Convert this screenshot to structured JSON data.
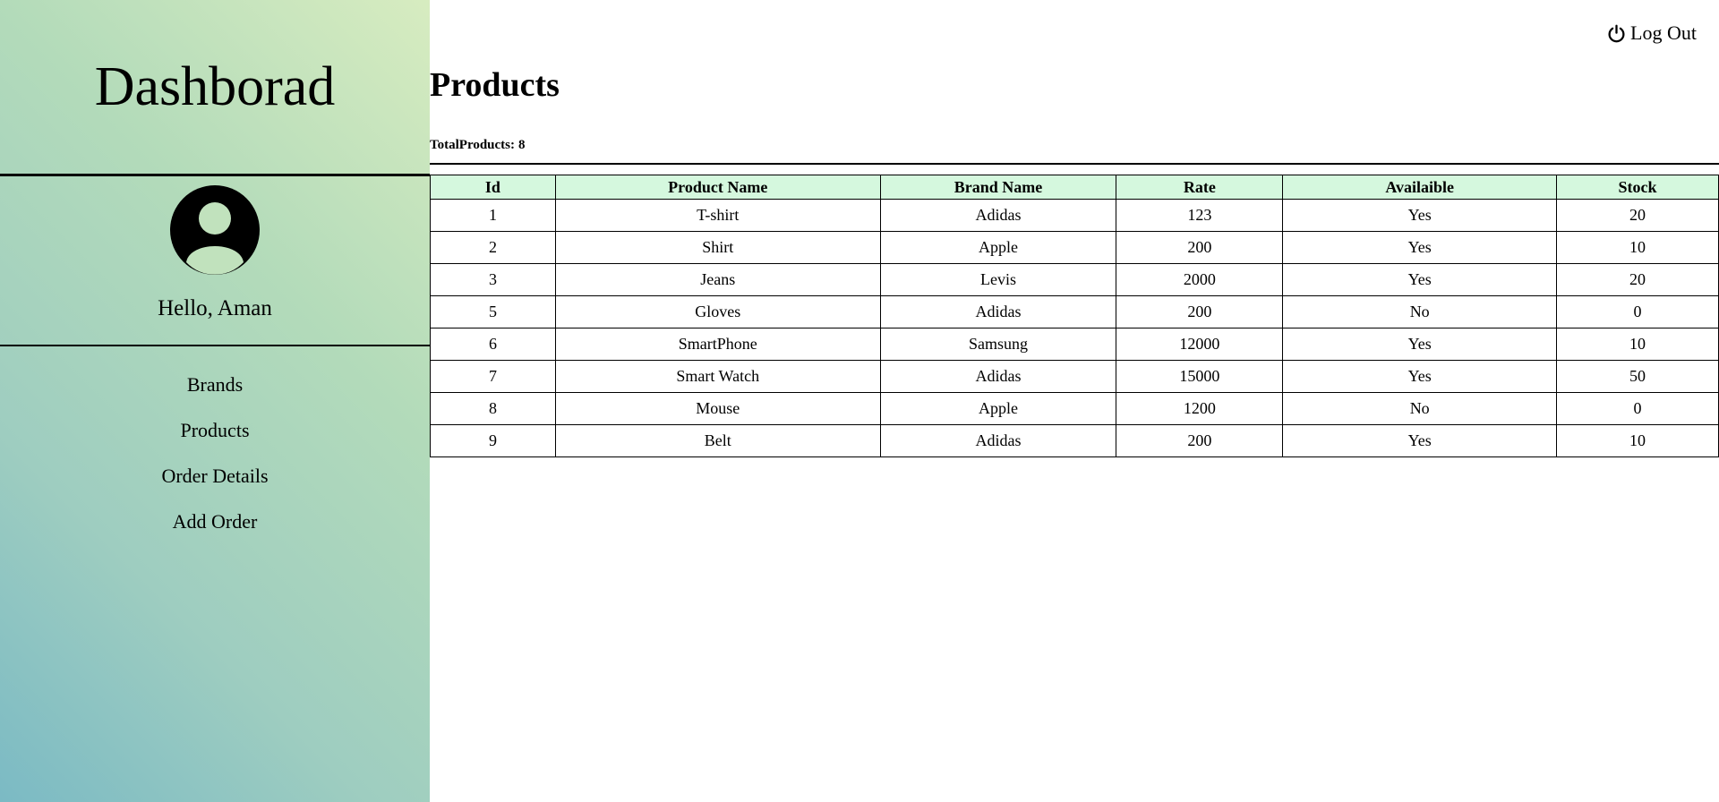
{
  "sidebar": {
    "title": "Dashborad",
    "greeting": "Hello, Aman",
    "nav": [
      {
        "label": "Brands"
      },
      {
        "label": "Products"
      },
      {
        "label": "Order Details"
      },
      {
        "label": "Add Order"
      }
    ]
  },
  "header": {
    "logout_label": "Log Out",
    "logout_icon": "power-icon"
  },
  "main": {
    "title": "Products",
    "total_label": "TotalProducts:",
    "total_value": "8"
  },
  "table": {
    "columns": [
      "Id",
      "Product Name",
      "Brand Name",
      "Rate",
      "Availaible",
      "Stock"
    ],
    "rows": [
      [
        "1",
        "T-shirt",
        "Adidas",
        "123",
        "Yes",
        "20"
      ],
      [
        "2",
        "Shirt",
        "Apple",
        "200",
        "Yes",
        "10"
      ],
      [
        "3",
        "Jeans",
        "Levis",
        "2000",
        "Yes",
        "20"
      ],
      [
        "5",
        "Gloves",
        "Adidas",
        "200",
        "No",
        "0"
      ],
      [
        "6",
        "SmartPhone",
        "Samsung",
        "12000",
        "Yes",
        "10"
      ],
      [
        "7",
        "Smart Watch",
        "Adidas",
        "15000",
        "Yes",
        "50"
      ],
      [
        "8",
        "Mouse",
        "Apple",
        "1200",
        "No",
        "0"
      ],
      [
        "9",
        "Belt",
        "Adidas",
        "200",
        "Yes",
        "10"
      ]
    ]
  },
  "colors": {
    "table_header_bg": "#d5f8de",
    "sidebar_gradient_start": "#d7ecc0",
    "sidebar_gradient_end": "#7bbac4"
  }
}
